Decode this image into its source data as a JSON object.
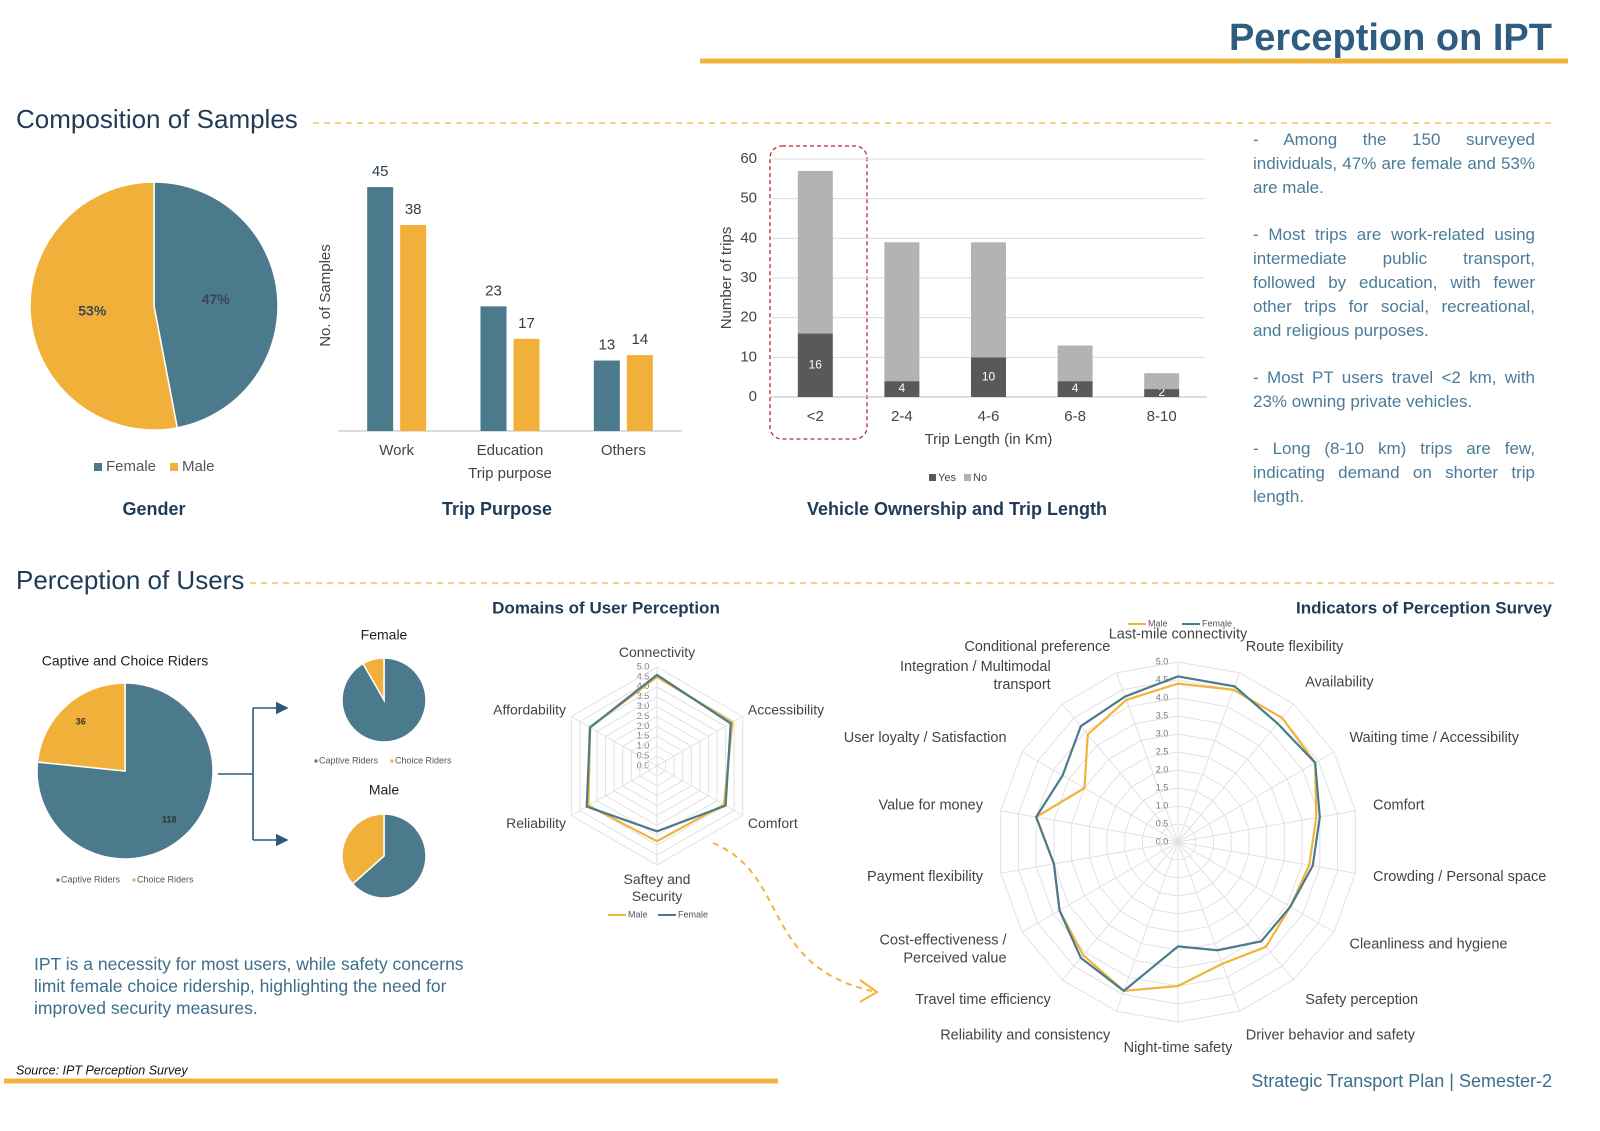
{
  "header": {
    "title": "Perception on IPT"
  },
  "sections": [
    "Composition of Samples",
    "Perception of Users"
  ],
  "notes": [
    "- Among the 150 surveyed individuals, 47% are female and 53% are male.",
    "- Most trips are work-related using intermediate public transport, followed by education, with fewer other trips for social, recreational, and religious purposes.",
    "- Most PT users travel <2 km, with 23% owning private vehicles.",
    "- Long (8-10 km) trips are few, indicating demand on shorter trip length."
  ],
  "conclusion": "IPT is a necessity for most users, while safety concerns limit female choice ridership, highlighting the need for improved security measures.",
  "source": "Source: IPT Perception Survey",
  "footer": "Strategic Transport Plan | Semester-2",
  "chart_data": [
    {
      "type": "pie",
      "title": "Gender",
      "categories": [
        "Female",
        "Male"
      ],
      "values": [
        47,
        53
      ],
      "value_labels": [
        "47%",
        "53%"
      ],
      "colors": [
        "#4a7a8c",
        "#f0b03a"
      ],
      "legend": "bottom"
    },
    {
      "type": "bar",
      "title": "Trip Purpose",
      "x_label": "Trip purpose",
      "y_label": "No. of Samples",
      "categories": [
        "Work",
        "Education",
        "Others"
      ],
      "series": [
        {
          "color": "#4a7a8c",
          "values": [
            45,
            23,
            13
          ]
        },
        {
          "color": "#f0b03a",
          "values": [
            38,
            17,
            14
          ]
        }
      ],
      "ylim": [
        0,
        50
      ],
      "data_labels": true
    },
    {
      "type": "bar",
      "stacked": true,
      "title": "Vehicle Ownership and Trip Length",
      "x_label": "Trip Length (in Km)",
      "y_label": "Number of trips",
      "categories": [
        "<2",
        "2-4",
        "4-6",
        "6-8",
        "8-10"
      ],
      "series": [
        {
          "name": "Yes",
          "color": "#595959",
          "values": [
            16,
            4,
            10,
            4,
            2
          ],
          "data_labels": true
        },
        {
          "name": "No",
          "color": "#b3b3b3",
          "values": [
            41,
            35,
            29,
            9,
            4
          ]
        }
      ],
      "ylim": [
        0,
        60
      ],
      "yticks": [
        0,
        10,
        20,
        30,
        40,
        50,
        60
      ],
      "grid": true,
      "legend": "bottom"
    },
    {
      "type": "pie",
      "title": "Captive and Choice Riders",
      "categories": [
        "Captive Riders",
        "Choice Riders"
      ],
      "values": [
        118,
        36
      ],
      "colors": [
        "#4a7a8c",
        "#f0b03a"
      ],
      "data_labels": true,
      "legend": "bottom"
    },
    {
      "type": "pie",
      "title": "Female",
      "categories": [
        "Captive Riders",
        "Choice Riders"
      ],
      "values": [
        66,
        6
      ],
      "colors": [
        "#4a7a8c",
        "#f0b03a"
      ],
      "legend": "bottom"
    },
    {
      "type": "pie",
      "title": "Male",
      "values": [
        52,
        30
      ],
      "colors": [
        "#4a7a8c",
        "#f0b03a"
      ]
    },
    {
      "type": "radar",
      "title": "Domains of User Perception",
      "categories": [
        "Connectivity",
        "Accessibility",
        "Comfort",
        "Saftey and\nSecurity",
        "Reliability",
        "Affordability"
      ],
      "series": [
        {
          "name": "Male",
          "color": "#f0b43c",
          "values": [
            4.5,
            4.4,
            3.9,
            3.8,
            4.0,
            3.9
          ]
        },
        {
          "name": "Female",
          "color": "#4a7a8c",
          "values": [
            4.6,
            4.3,
            4.0,
            3.3,
            4.1,
            3.9
          ]
        }
      ],
      "rlim": [
        0,
        5
      ],
      "rticks": [
        {
          "value": 0,
          "label": "0.0"
        },
        {
          "value": 0.5,
          "label": "0.5"
        },
        {
          "value": 1,
          "label": "1.0"
        },
        {
          "value": 1.5,
          "label": "1.5"
        },
        {
          "value": 2,
          "label": "2.0"
        },
        {
          "value": 2.5,
          "label": "2.5"
        },
        {
          "value": 3,
          "label": "3.0"
        },
        {
          "value": 3.5,
          "label": "3.5"
        },
        {
          "value": 4,
          "label": "4.0"
        },
        {
          "value": 4.5,
          "label": "4.5"
        },
        {
          "value": 5,
          "label": "5.0"
        }
      ],
      "legend": "bottom"
    },
    {
      "type": "radar",
      "title": "Indicators of Perception Survey",
      "categories": [
        "Last-mile connectivity",
        "Route flexibility",
        "Availability",
        "Waiting time / Accessibility",
        "Comfort",
        "Crowding / Personal space",
        "Cleanliness and hygiene",
        "Safety perception",
        "Driver behavior and safety",
        "Night-time safety",
        "Reliability and consistency",
        "Travel time efficiency",
        "Cost-effectiveness /\nPerceived value",
        "Payment flexibility",
        "Value for money",
        "User loyalty / Satisfaction",
        "Integration / Multimodal\ntransport",
        "Conditional preference"
      ],
      "series": [
        {
          "name": "Male",
          "color": "#f0b43c",
          "values": [
            4.4,
            4.5,
            4.5,
            4.4,
            3.9,
            3.7,
            3.6,
            3.8,
            3.6,
            4.0,
            4.4,
            4.1,
            3.8,
            3.5,
            4.0,
            3.0,
            3.9,
            4.2
          ]
        },
        {
          "name": "Female",
          "color": "#4a7a8c",
          "values": [
            4.6,
            4.6,
            4.3,
            4.4,
            4.0,
            3.8,
            3.6,
            3.6,
            3.2,
            2.9,
            4.4,
            4.2,
            3.8,
            3.5,
            4.0,
            3.7,
            4.2,
            4.3
          ]
        }
      ],
      "rlim": [
        0,
        5
      ],
      "rticks": [
        {
          "value": 0,
          "label": "0.0"
        },
        {
          "value": 0.5,
          "label": "0.5"
        },
        {
          "value": 1,
          "label": "1.0"
        },
        {
          "value": 1.5,
          "label": "1.5"
        },
        {
          "value": 2,
          "label": "2.0"
        },
        {
          "value": 2.5,
          "label": "2.5"
        },
        {
          "value": 3,
          "label": "3.0"
        },
        {
          "value": 3.5,
          "label": "3.5"
        },
        {
          "value": 4,
          "label": "4.0"
        },
        {
          "value": 4.5,
          "label": "4.5"
        },
        {
          "value": 5,
          "label": "5.0"
        }
      ],
      "legend": "top"
    }
  ]
}
